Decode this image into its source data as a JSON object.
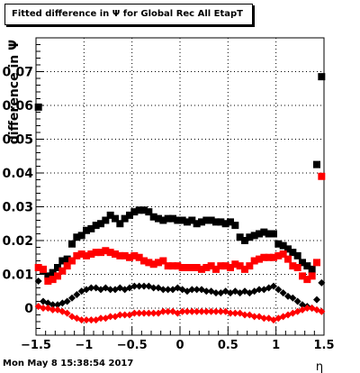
{
  "title": "Fitted difference in  Ψ  for Global Rec All EtapT",
  "footer": "Mon May  8 15:38:54 2017",
  "colors": {
    "black_series": "#000000",
    "red_series": "#ff0000"
  },
  "chart_data": {
    "type": "scatter",
    "title": "Fitted difference in  Ψ  for Global Rec All EtapT",
    "xlabel": "η",
    "ylabel": "difference in  Ψ",
    "xlim": [
      -1.5,
      1.5
    ],
    "ylim": [
      -0.008,
      0.08
    ],
    "x_ticks": [
      "−1.5",
      "−1",
      "−0.5",
      "0",
      "0.5",
      "1",
      "1.5"
    ],
    "x_tick_values": [
      -1.5,
      -1,
      -0.5,
      0,
      0.5,
      1,
      1.5
    ],
    "y_ticks": [
      "0",
      "0.01",
      "0.02",
      "0.03",
      "0.04",
      "0.05",
      "0.06",
      "0.07"
    ],
    "y_tick_values": [
      0,
      0.01,
      0.02,
      0.03,
      0.04,
      0.05,
      0.06,
      0.07
    ],
    "grid": true,
    "series": [
      {
        "color": "#000000",
        "marker": "square",
        "x": [
          -1.475,
          -1.425,
          -1.375,
          -1.325,
          -1.275,
          -1.225,
          -1.175,
          -1.125,
          -1.075,
          -1.025,
          -0.975,
          -0.925,
          -0.875,
          -0.825,
          -0.775,
          -0.725,
          -0.675,
          -0.625,
          -0.575,
          -0.525,
          -0.475,
          -0.425,
          -0.375,
          -0.325,
          -0.275,
          -0.225,
          -0.175,
          -0.125,
          -0.075,
          -0.025,
          0.025,
          0.075,
          0.125,
          0.175,
          0.225,
          0.275,
          0.325,
          0.375,
          0.425,
          0.475,
          0.525,
          0.575,
          0.625,
          0.675,
          0.725,
          0.775,
          0.825,
          0.875,
          0.925,
          0.975,
          1.025,
          1.075,
          1.125,
          1.175,
          1.225,
          1.275,
          1.325,
          1.375,
          1.425,
          1.475
        ],
        "y": [
          0.0595,
          0.011,
          0.0095,
          0.0105,
          0.012,
          0.014,
          0.0145,
          0.019,
          0.021,
          0.0215,
          0.023,
          0.0235,
          0.0245,
          0.025,
          0.026,
          0.0275,
          0.0265,
          0.025,
          0.0265,
          0.0275,
          0.0285,
          0.029,
          0.029,
          0.0285,
          0.027,
          0.0265,
          0.026,
          0.0265,
          0.0265,
          0.026,
          0.026,
          0.0255,
          0.026,
          0.025,
          0.0255,
          0.026,
          0.026,
          0.0255,
          0.0255,
          0.025,
          0.0255,
          0.0245,
          0.021,
          0.02,
          0.021,
          0.0215,
          0.022,
          0.0225,
          0.022,
          0.022,
          0.019,
          0.0185,
          0.0175,
          0.0165,
          0.0155,
          0.0135,
          0.0125,
          0.0115,
          0.0425,
          0.0685
        ]
      },
      {
        "color": "#ff0000",
        "marker": "square",
        "x": [
          -1.475,
          -1.425,
          -1.375,
          -1.325,
          -1.275,
          -1.225,
          -1.175,
          -1.125,
          -1.075,
          -1.025,
          -0.975,
          -0.925,
          -0.875,
          -0.825,
          -0.775,
          -0.725,
          -0.675,
          -0.625,
          -0.575,
          -0.525,
          -0.475,
          -0.425,
          -0.375,
          -0.325,
          -0.275,
          -0.225,
          -0.175,
          -0.125,
          -0.075,
          -0.025,
          0.025,
          0.075,
          0.125,
          0.175,
          0.225,
          0.275,
          0.325,
          0.375,
          0.425,
          0.475,
          0.525,
          0.575,
          0.625,
          0.675,
          0.725,
          0.775,
          0.825,
          0.875,
          0.925,
          0.975,
          1.025,
          1.075,
          1.125,
          1.175,
          1.225,
          1.275,
          1.325,
          1.375,
          1.425,
          1.475
        ],
        "y": [
          0.012,
          0.0115,
          0.008,
          0.0085,
          0.0095,
          0.011,
          0.0125,
          0.014,
          0.0155,
          0.016,
          0.0155,
          0.016,
          0.0165,
          0.0165,
          0.017,
          0.0165,
          0.016,
          0.0155,
          0.0155,
          0.015,
          0.0155,
          0.015,
          0.014,
          0.0135,
          0.013,
          0.0135,
          0.014,
          0.0125,
          0.0125,
          0.0125,
          0.012,
          0.012,
          0.012,
          0.012,
          0.0115,
          0.012,
          0.0125,
          0.0115,
          0.0125,
          0.0125,
          0.012,
          0.013,
          0.0125,
          0.0115,
          0.0125,
          0.014,
          0.0145,
          0.015,
          0.015,
          0.015,
          0.0155,
          0.016,
          0.0145,
          0.0125,
          0.012,
          0.0095,
          0.0085,
          0.0095,
          0.0135,
          0.039
        ]
      },
      {
        "color": "#000000",
        "marker": "diamond",
        "x": [
          -1.475,
          -1.425,
          -1.375,
          -1.325,
          -1.275,
          -1.225,
          -1.175,
          -1.125,
          -1.075,
          -1.025,
          -0.975,
          -0.925,
          -0.875,
          -0.825,
          -0.775,
          -0.725,
          -0.675,
          -0.625,
          -0.575,
          -0.525,
          -0.475,
          -0.425,
          -0.375,
          -0.325,
          -0.275,
          -0.225,
          -0.175,
          -0.125,
          -0.075,
          -0.025,
          0.025,
          0.075,
          0.125,
          0.175,
          0.225,
          0.275,
          0.325,
          0.375,
          0.425,
          0.475,
          0.525,
          0.575,
          0.625,
          0.675,
          0.725,
          0.775,
          0.825,
          0.875,
          0.925,
          0.975,
          1.025,
          1.075,
          1.125,
          1.175,
          1.225,
          1.275,
          1.325,
          1.375,
          1.425,
          1.475
        ],
        "y": [
          0.008,
          0.002,
          0.0015,
          0.001,
          0.001,
          0.0015,
          0.002,
          0.003,
          0.004,
          0.005,
          0.0055,
          0.006,
          0.006,
          0.0055,
          0.006,
          0.0055,
          0.0055,
          0.006,
          0.0055,
          0.006,
          0.0065,
          0.0065,
          0.0065,
          0.0065,
          0.006,
          0.006,
          0.0055,
          0.0055,
          0.0055,
          0.006,
          0.0055,
          0.005,
          0.0055,
          0.0055,
          0.0055,
          0.005,
          0.005,
          0.0045,
          0.0045,
          0.005,
          0.0045,
          0.005,
          0.0045,
          0.005,
          0.0045,
          0.005,
          0.0055,
          0.0055,
          0.006,
          0.0065,
          0.0055,
          0.0045,
          0.0035,
          0.003,
          0.002,
          0.001,
          0.0005,
          0.0,
          0.0025,
          0.0075
        ]
      },
      {
        "color": "#ff0000",
        "marker": "diamond",
        "x": [
          -1.475,
          -1.425,
          -1.375,
          -1.325,
          -1.275,
          -1.225,
          -1.175,
          -1.125,
          -1.075,
          -1.025,
          -0.975,
          -0.925,
          -0.875,
          -0.825,
          -0.775,
          -0.725,
          -0.675,
          -0.625,
          -0.575,
          -0.525,
          -0.475,
          -0.425,
          -0.375,
          -0.325,
          -0.275,
          -0.225,
          -0.175,
          -0.125,
          -0.075,
          -0.025,
          0.025,
          0.075,
          0.125,
          0.175,
          0.225,
          0.275,
          0.325,
          0.375,
          0.425,
          0.475,
          0.525,
          0.575,
          0.625,
          0.675,
          0.725,
          0.775,
          0.825,
          0.875,
          0.925,
          0.975,
          1.025,
          1.075,
          1.125,
          1.175,
          1.225,
          1.275,
          1.325,
          1.375,
          1.425,
          1.475
        ],
        "y": [
          0.0005,
          0.0,
          0.0,
          -0.0005,
          -0.0005,
          -0.001,
          -0.0015,
          -0.0025,
          -0.003,
          -0.0035,
          -0.0035,
          -0.0035,
          -0.0035,
          -0.003,
          -0.003,
          -0.0025,
          -0.0025,
          -0.002,
          -0.002,
          -0.002,
          -0.0015,
          -0.0015,
          -0.0015,
          -0.0015,
          -0.0015,
          -0.0015,
          -0.001,
          -0.001,
          -0.001,
          -0.0015,
          -0.001,
          -0.001,
          -0.001,
          -0.001,
          -0.001,
          -0.001,
          -0.001,
          -0.001,
          -0.001,
          -0.001,
          -0.0015,
          -0.0015,
          -0.0015,
          -0.002,
          -0.002,
          -0.0025,
          -0.0025,
          -0.003,
          -0.003,
          -0.0035,
          -0.003,
          -0.0025,
          -0.002,
          -0.0015,
          -0.001,
          -0.0005,
          0.0,
          0.0,
          -0.0005,
          -0.001
        ]
      }
    ]
  }
}
